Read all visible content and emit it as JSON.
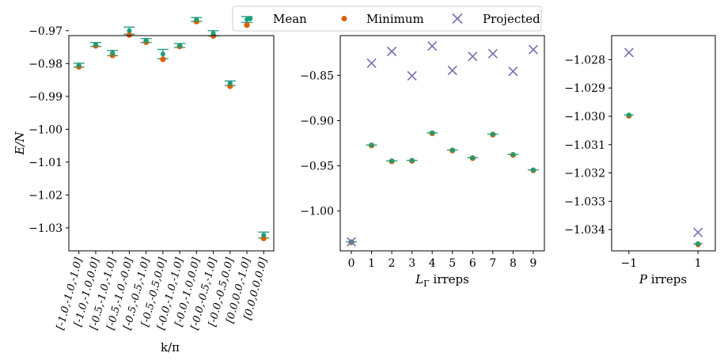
{
  "legend": {
    "entries": [
      {
        "label": "Mean",
        "color": "#1b9e77",
        "marker": "dot"
      },
      {
        "label": "Minimum",
        "color": "#d95f02",
        "marker": "dot"
      },
      {
        "label": "Projected",
        "color": "#7570b3",
        "marker": "x"
      }
    ]
  },
  "chart_data": [
    {
      "type": "scatter",
      "title": "",
      "xlabel": "k/π",
      "ylabel": "E/N",
      "ylim": [
        -1.037,
        -0.9715
      ],
      "yticks": [
        -0.97,
        -0.98,
        -0.99,
        -1.0,
        -1.01,
        -1.02,
        -1.03
      ],
      "ytick_labels": [
        "−0.97",
        "−0.98",
        "−0.99",
        "−1.00",
        "−1.01",
        "−1.02",
        "−1.03"
      ],
      "categories": [
        "[-1.0,-1.0,-1.0]",
        "[-1.0,-1.0,0.0]",
        "[-0.5,-1.0,-1.0]",
        "[-0.5,-1.0,-0.0]",
        "[-0.5,-0.5,-1.0]",
        "[-0.5,-0.5,0.0]",
        "[-0.0,-1.0,-1.0]",
        "[-0.0,-1.0,0.0]",
        "[-0.0,-0.5,-1.0]",
        "[-0.0,-0.5,0.0]",
        "[0.0,0.0,-1.0]",
        "[0.0,0.0,0.0]"
      ],
      "series": [
        {
          "name": "Mean",
          "values": [
            -0.9805,
            -0.9742,
            -0.9768,
            -0.97,
            -0.973,
            -0.9771,
            -0.9745,
            -0.9666,
            -0.9708,
            -0.986,
            -0.9666,
            -1.0322
          ],
          "err": [
            0.0006,
            0.0006,
            0.0008,
            0.0011,
            0.0006,
            0.0014,
            0.0006,
            0.0006,
            0.0008,
            0.0007,
            0.0009,
            0.0009
          ]
        },
        {
          "name": "Minimum",
          "values": [
            -0.981,
            -0.9746,
            -0.9775,
            -0.9713,
            -0.9735,
            -0.9787,
            -0.9748,
            -0.9672,
            -0.9716,
            -0.9869,
            -0.9683,
            -1.0332
          ]
        }
      ]
    },
    {
      "type": "scatter",
      "title": "",
      "xlabel": "LΓ irreps",
      "xlabel_main": "L",
      "xlabel_sub": "Γ",
      "xlabel_rest": " irreps",
      "ylim": [
        -1.044,
        -0.806
      ],
      "yticks": [
        -0.85,
        -0.9,
        -0.95,
        -1.0
      ],
      "ytick_labels": [
        "−0.85",
        "−0.90",
        "−0.95",
        "−1.00"
      ],
      "x": [
        0,
        1,
        2,
        3,
        4,
        5,
        6,
        7,
        8,
        9
      ],
      "xtick_labels": [
        "0",
        "1",
        "2",
        "3",
        "4",
        "5",
        "6",
        "7",
        "8",
        "9"
      ],
      "series": [
        {
          "name": "Mean",
          "values": [
            -1.034,
            -0.927,
            -0.9445,
            -0.944,
            -0.9135,
            -0.9325,
            -0.941,
            -0.915,
            -0.9375,
            -0.9545
          ]
        },
        {
          "name": "Minimum",
          "values": [
            -1.0345,
            -0.9275,
            -0.945,
            -0.9445,
            -0.914,
            -0.933,
            -0.9415,
            -0.9155,
            -0.938,
            -0.955
          ]
        },
        {
          "name": "Projected",
          "values": [
            -1.034,
            -0.8365,
            -0.8235,
            -0.8505,
            -0.8175,
            -0.8445,
            -0.829,
            -0.826,
            -0.8455,
            -0.8215
          ]
        }
      ]
    },
    {
      "type": "scatter",
      "title": "",
      "xlabel": "P irreps",
      "xlabel_main": "P",
      "xlabel_rest": " irreps",
      "ylim": [
        -1.03475,
        -1.02715
      ],
      "yticks": [
        -1.028,
        -1.029,
        -1.03,
        -1.031,
        -1.032,
        -1.033,
        -1.034
      ],
      "ytick_labels": [
        "−1.028",
        "−1.029",
        "−1.030",
        "−1.031",
        "−1.032",
        "−1.033",
        "−1.034"
      ],
      "x": [
        -1,
        1
      ],
      "xtick_labels": [
        "−1",
        "1"
      ],
      "series": [
        {
          "name": "Mean",
          "values": [
            -1.02995,
            -1.0345
          ]
        },
        {
          "name": "Minimum",
          "values": [
            -1.02998,
            -1.03452
          ]
        },
        {
          "name": "Projected",
          "values": [
            -1.02775,
            -1.0341
          ]
        }
      ]
    }
  ]
}
